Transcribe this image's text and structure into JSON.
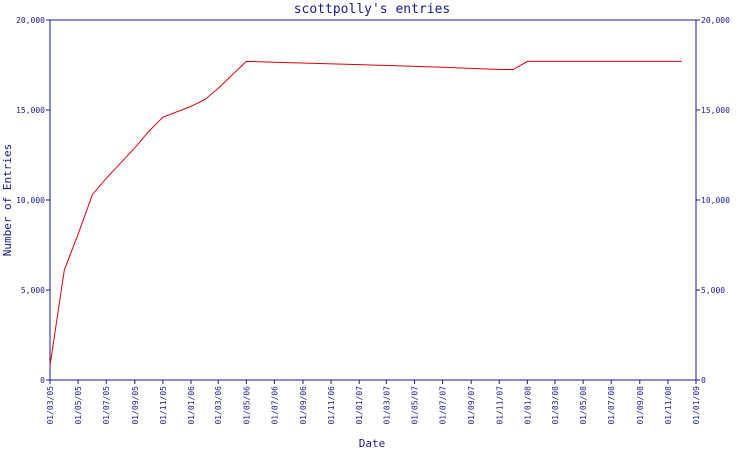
{
  "chart_data": {
    "type": "line",
    "title": "scottpolly's entries",
    "xlabel": "Date",
    "ylabel": "Number of Entries",
    "ylim": [
      0,
      20000
    ],
    "y_ticks": [
      "0",
      "5,000",
      "10,000",
      "15,000",
      "20,000"
    ],
    "y_tick_values": [
      0,
      5000,
      10000,
      15000,
      20000
    ],
    "x_ticks": [
      "01/03/05",
      "01/05/05",
      "01/07/05",
      "01/09/05",
      "01/11/05",
      "01/01/06",
      "01/03/06",
      "01/05/06",
      "01/07/06",
      "01/09/06",
      "01/11/06",
      "01/01/07",
      "01/03/07",
      "01/05/07",
      "01/07/07",
      "01/09/07",
      "01/11/07",
      "01/01/08",
      "01/03/08",
      "01/05/08",
      "01/07/08",
      "01/09/08",
      "01/11/08",
      "01/01/09"
    ],
    "grid": false,
    "series": [
      {
        "color": "#e00000",
        "points": [
          {
            "x": "01/03/05",
            "y": 800
          },
          {
            "x": "01/04/05",
            "y": 6100
          },
          {
            "x": "01/05/05",
            "y": 8100
          },
          {
            "x": "01/06/05",
            "y": 10300
          },
          {
            "x": "01/07/05",
            "y": 11200
          },
          {
            "x": "01/09/05",
            "y": 12900
          },
          {
            "x": "01/10/05",
            "y": 13800
          },
          {
            "x": "01/11/05",
            "y": 14600
          },
          {
            "x": "01/01/06",
            "y": 15200
          },
          {
            "x": "01/02/06",
            "y": 15600
          },
          {
            "x": "01/03/06",
            "y": 16200
          },
          {
            "x": "01/05/06",
            "y": 17700
          },
          {
            "x": "01/07/06",
            "y": 17650
          },
          {
            "x": "01/01/07",
            "y": 17520
          },
          {
            "x": "01/07/07",
            "y": 17370
          },
          {
            "x": "01/11/07",
            "y": 17250
          },
          {
            "x": "01/12/07",
            "y": 17250
          },
          {
            "x": "01/01/08",
            "y": 17700
          },
          {
            "x": "01/07/08",
            "y": 17700
          },
          {
            "x": "01/12/08",
            "y": 17700
          }
        ]
      }
    ]
  }
}
